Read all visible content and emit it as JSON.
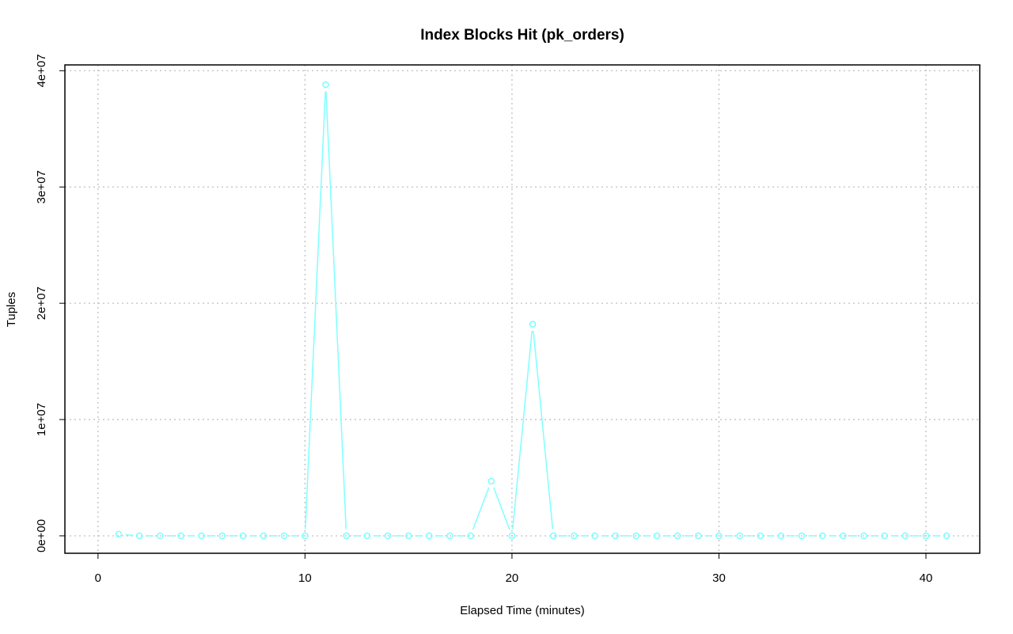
{
  "chart_data": {
    "type": "line",
    "title": "Index Blocks Hit (pk_orders)",
    "xlabel": "Elapsed Time (minutes)",
    "ylabel": "Tuples",
    "xlim": [
      -1.6,
      42.6
    ],
    "ylim": [
      -1500000,
      40500000
    ],
    "x_ticks": [
      0,
      10,
      20,
      30,
      40
    ],
    "x_tick_labels": [
      "0",
      "10",
      "20",
      "30",
      "40"
    ],
    "y_ticks": [
      0,
      10000000,
      20000000,
      30000000,
      40000000
    ],
    "y_tick_labels": [
      "0e+00",
      "1e+07",
      "2e+07",
      "3e+07",
      "4e+07"
    ],
    "grid": true,
    "series": [
      {
        "color": "#7fffff",
        "marker": "circle",
        "x": [
          1,
          2,
          3,
          4,
          5,
          6,
          7,
          8,
          9,
          10,
          11,
          12,
          13,
          14,
          15,
          16,
          17,
          18,
          19,
          20,
          21,
          22,
          23,
          24,
          25,
          26,
          27,
          28,
          29,
          30,
          31,
          32,
          33,
          34,
          35,
          36,
          37,
          38,
          39,
          40,
          41
        ],
        "y": [
          150000,
          0,
          0,
          0,
          0,
          0,
          0,
          0,
          0,
          0,
          38800000,
          0,
          0,
          0,
          0,
          0,
          0,
          0,
          4700000,
          0,
          18200000,
          0,
          0,
          0,
          0,
          0,
          0,
          0,
          0,
          0,
          0,
          0,
          0,
          0,
          0,
          0,
          0,
          0,
          0,
          0,
          0
        ]
      }
    ]
  }
}
